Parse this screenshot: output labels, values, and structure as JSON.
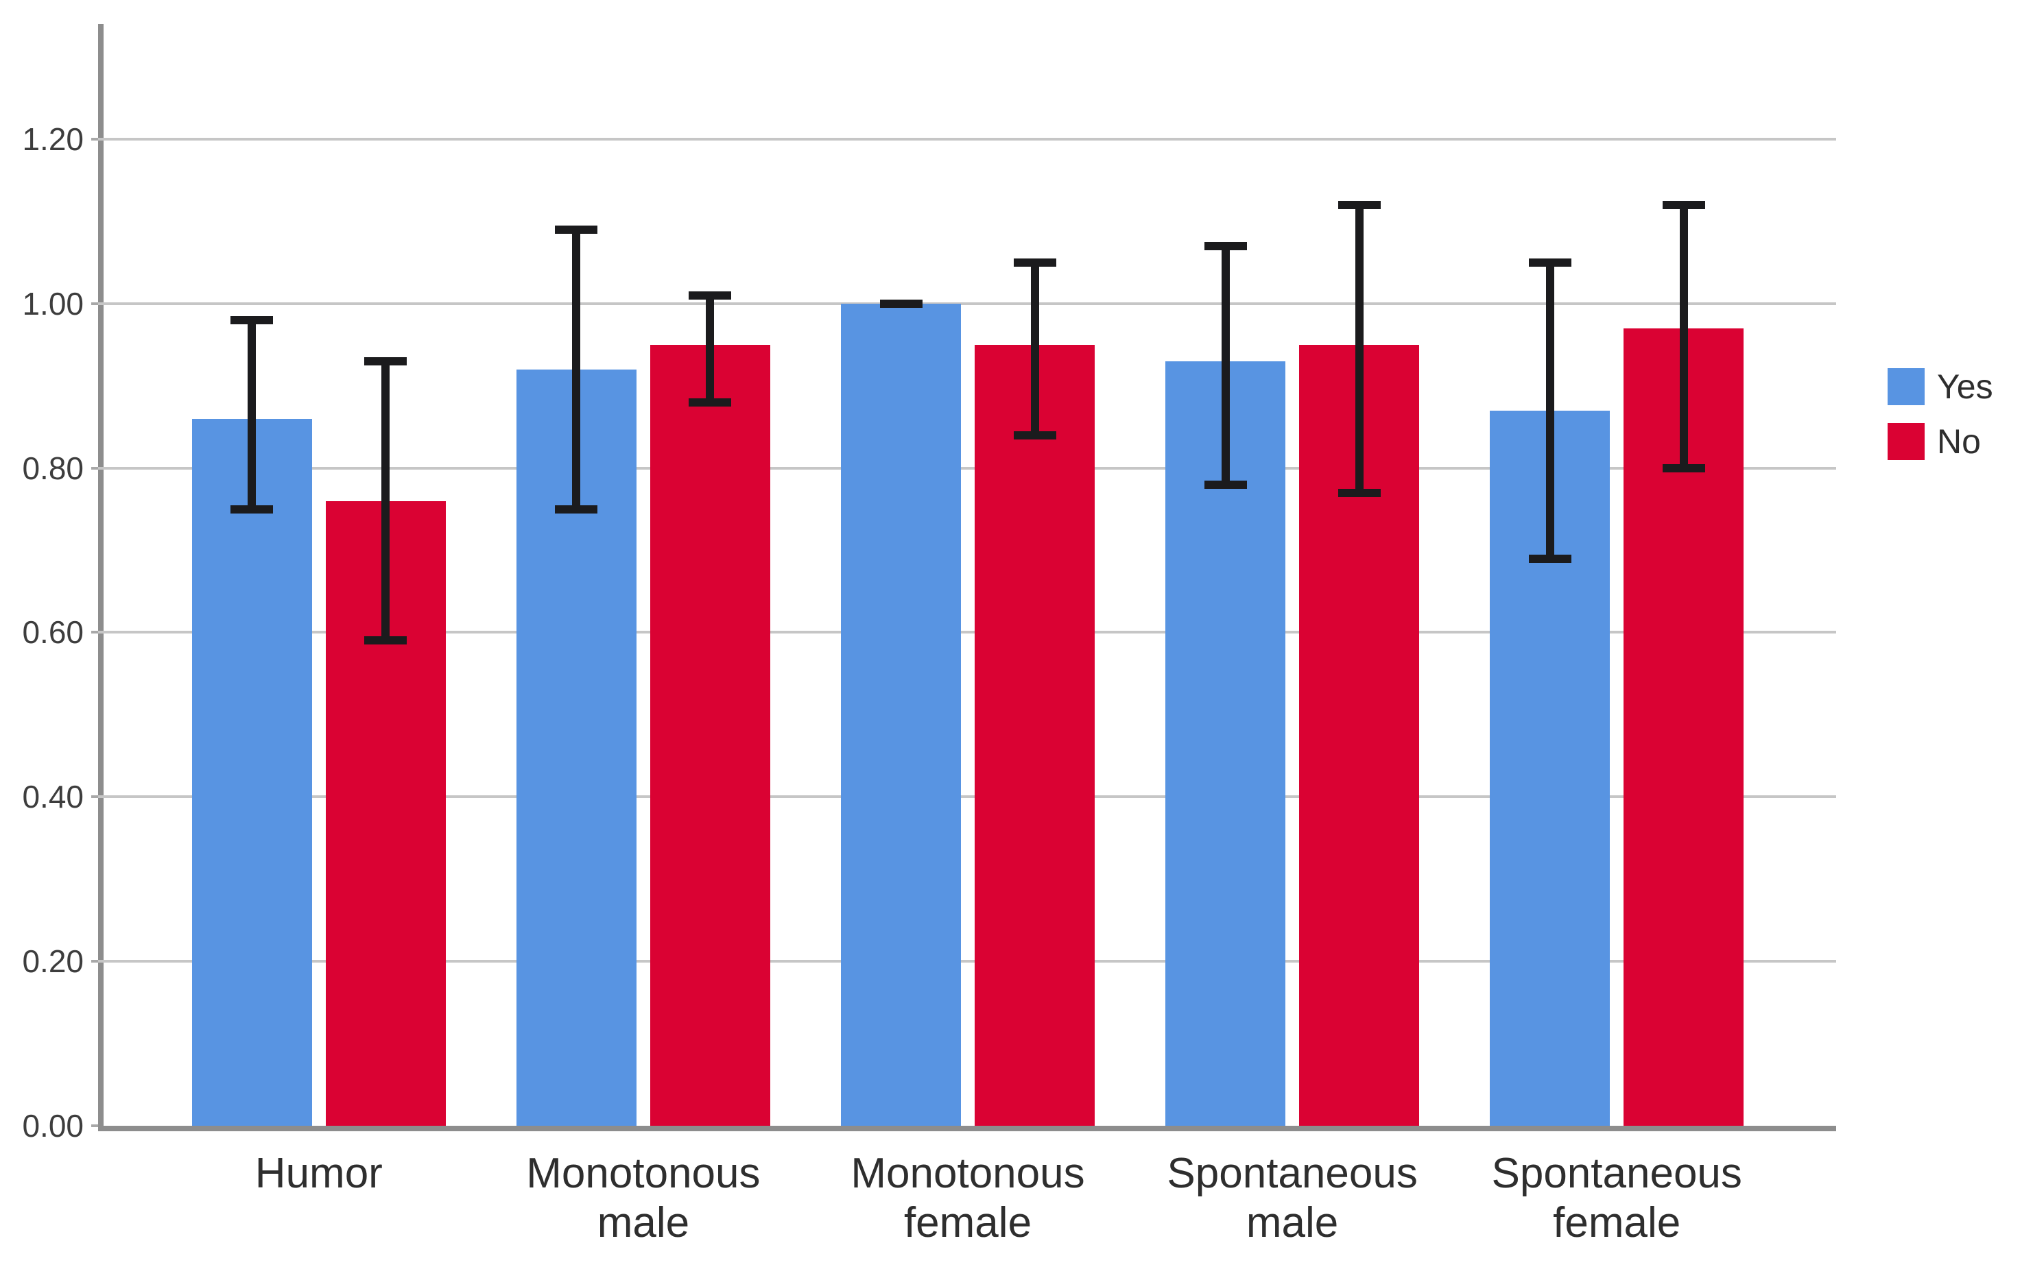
{
  "chart_data": {
    "type": "bar",
    "title": "",
    "xlabel": "",
    "ylabel": "",
    "categories": [
      "Humor",
      "Monotonous male",
      "Monotonous female",
      "Spontaneous male",
      "Spontaneous female"
    ],
    "series": [
      {
        "name": "Yes",
        "color": "#5894E2",
        "values": [
          0.86,
          0.92,
          1.0,
          0.93,
          0.87
        ],
        "ci_low": [
          0.75,
          0.75,
          1.0,
          0.78,
          0.69
        ],
        "ci_high": [
          0.98,
          1.09,
          1.0,
          1.07,
          1.05
        ]
      },
      {
        "name": "No",
        "color": "#DA0233",
        "values": [
          0.76,
          0.95,
          0.95,
          0.95,
          0.97
        ],
        "ci_low": [
          0.59,
          0.88,
          0.84,
          0.77,
          0.8
        ],
        "ci_high": [
          0.93,
          1.01,
          1.05,
          1.12,
          1.12
        ]
      }
    ],
    "error_bars": true,
    "grid": "horizontal",
    "legend_position": "right",
    "ylim": [
      0,
      1.34
    ],
    "yticks": [
      0.0,
      0.2,
      0.4,
      0.6,
      0.8,
      1.0,
      1.2
    ],
    "ytick_labels": [
      "0.00",
      "0.20",
      "0.40",
      "0.60",
      "0.80",
      "1.00",
      "1.20"
    ]
  }
}
